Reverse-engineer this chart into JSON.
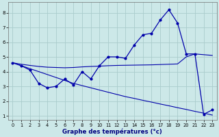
{
  "xlabel": "Graphe des températures (°c)",
  "background_color": "#cce8e8",
  "grid_color": "#aacccc",
  "line_color": "#0000aa",
  "x": [
    0,
    1,
    2,
    3,
    4,
    5,
    6,
    7,
    8,
    9,
    10,
    11,
    12,
    13,
    14,
    15,
    16,
    17,
    18,
    19,
    20,
    21,
    22,
    23
  ],
  "line_temp": [
    4.6,
    4.4,
    4.1,
    3.2,
    2.9,
    3.0,
    3.5,
    3.1,
    4.0,
    3.5,
    4.4,
    5.0,
    5.0,
    4.9,
    5.8,
    6.5,
    6.6,
    7.5,
    8.2,
    7.3,
    5.2,
    5.2,
    1.1,
    1.4
  ],
  "line_diag": [
    4.6,
    4.4,
    4.2,
    4.0,
    3.8,
    3.6,
    3.4,
    3.2,
    3.05,
    2.9,
    2.75,
    2.6,
    2.45,
    2.3,
    2.18,
    2.05,
    1.93,
    1.8,
    1.68,
    1.55,
    1.43,
    1.3,
    1.18,
    1.05
  ],
  "line_flat": [
    4.6,
    4.5,
    4.42,
    4.35,
    4.3,
    4.28,
    4.26,
    4.28,
    4.32,
    4.35,
    4.37,
    4.4,
    4.42,
    4.43,
    4.44,
    4.45,
    4.46,
    4.48,
    4.5,
    4.52,
    5.0,
    5.2,
    5.15,
    5.1
  ],
  "ylim": [
    0.7,
    8.7
  ],
  "xlim": [
    -0.5,
    23.5
  ],
  "yticks": [
    1,
    2,
    3,
    4,
    5,
    6,
    7,
    8
  ],
  "xticks": [
    0,
    1,
    2,
    3,
    4,
    5,
    6,
    7,
    8,
    9,
    10,
    11,
    12,
    13,
    14,
    15,
    16,
    17,
    18,
    19,
    20,
    21,
    22,
    23
  ]
}
